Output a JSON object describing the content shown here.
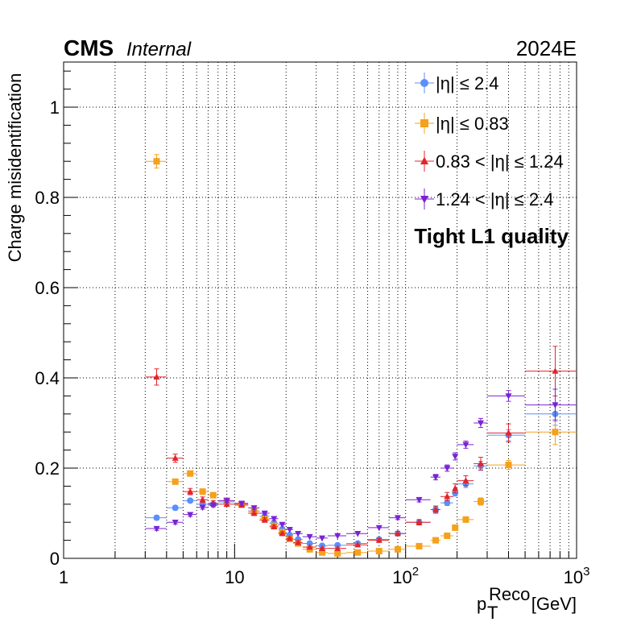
{
  "header": {
    "experiment": "CMS",
    "status": "Internal",
    "era": "2024E",
    "quality_label": "Tight L1 quality"
  },
  "chart_data": {
    "type": "scatter",
    "xlabel": "p_T^Reco [GeV]",
    "xlabel_main": "p",
    "xlabel_sub": "T",
    "xlabel_sup": "Reco",
    "xlabel_unit": "[GeV]",
    "ylabel": "Charge misidentification",
    "xscale": "log",
    "xlim": [
      1,
      1000
    ],
    "ylim": [
      0,
      1.1
    ],
    "grid": true,
    "legend_position": "top-right",
    "x_ticks": [
      {
        "value": 1,
        "label": "1"
      },
      {
        "value": 10,
        "label": "10"
      },
      {
        "value": 100,
        "label": "10",
        "exp": "2"
      },
      {
        "value": 1000,
        "label": "10",
        "exp": "3"
      }
    ],
    "y_ticks": [
      "0",
      "0.2",
      "0.4",
      "0.6",
      "0.8",
      "1"
    ],
    "series": [
      {
        "name": "|η| ≤ 2.4",
        "color": "#5b8ff9",
        "marker": "circle",
        "points": [
          {
            "x": 3.5,
            "xlo": 3,
            "xhi": 4,
            "y": 0.09,
            "err": 0.005
          },
          {
            "x": 4.5,
            "xlo": 4,
            "xhi": 5,
            "y": 0.112,
            "err": 0.005
          },
          {
            "x": 5.5,
            "xlo": 5,
            "xhi": 6,
            "y": 0.128,
            "err": 0.004
          },
          {
            "x": 6.5,
            "xlo": 6,
            "xhi": 7,
            "y": 0.12,
            "err": 0.004
          },
          {
            "x": 7.5,
            "xlo": 7,
            "xhi": 8,
            "y": 0.12,
            "err": 0.004
          },
          {
            "x": 9,
            "xlo": 8,
            "xhi": 10,
            "y": 0.125,
            "err": 0.003
          },
          {
            "x": 11,
            "xlo": 10,
            "xhi": 12,
            "y": 0.12,
            "err": 0.003
          },
          {
            "x": 13,
            "xlo": 12,
            "xhi": 14,
            "y": 0.105,
            "err": 0.003
          },
          {
            "x": 15,
            "xlo": 14,
            "xhi": 16,
            "y": 0.093,
            "err": 0.003
          },
          {
            "x": 17,
            "xlo": 16,
            "xhi": 18,
            "y": 0.078,
            "err": 0.003
          },
          {
            "x": 19,
            "xlo": 18,
            "xhi": 20,
            "y": 0.065,
            "err": 0.003
          },
          {
            "x": 21,
            "xlo": 20,
            "xhi": 22,
            "y": 0.052,
            "err": 0.003
          },
          {
            "x": 23.5,
            "xlo": 22,
            "xhi": 25,
            "y": 0.042,
            "err": 0.003
          },
          {
            "x": 27.5,
            "xlo": 25,
            "xhi": 30,
            "y": 0.033,
            "err": 0.003
          },
          {
            "x": 32.5,
            "xlo": 30,
            "xhi": 35,
            "y": 0.028,
            "err": 0.003
          },
          {
            "x": 40,
            "xlo": 35,
            "xhi": 45,
            "y": 0.029,
            "err": 0.003
          },
          {
            "x": 52.5,
            "xlo": 45,
            "xhi": 60,
            "y": 0.033,
            "err": 0.003
          },
          {
            "x": 70,
            "xlo": 60,
            "xhi": 80,
            "y": 0.042,
            "err": 0.003
          },
          {
            "x": 90,
            "xlo": 80,
            "xhi": 100,
            "y": 0.055,
            "err": 0.004
          },
          {
            "x": 120,
            "xlo": 100,
            "xhi": 140,
            "y": 0.08,
            "err": 0.005
          },
          {
            "x": 150,
            "xlo": 140,
            "xhi": 160,
            "y": 0.108,
            "err": 0.006
          },
          {
            "x": 175,
            "xlo": 160,
            "xhi": 190,
            "y": 0.123,
            "err": 0.006
          },
          {
            "x": 195,
            "xlo": 190,
            "xhi": 200,
            "y": 0.145,
            "err": 0.007
          },
          {
            "x": 225,
            "xlo": 200,
            "xhi": 250,
            "y": 0.165,
            "err": 0.008
          },
          {
            "x": 275,
            "xlo": 250,
            "xhi": 300,
            "y": 0.205,
            "err": 0.01
          },
          {
            "x": 400,
            "xlo": 300,
            "xhi": 500,
            "y": 0.273,
            "err": 0.012
          },
          {
            "x": 750,
            "xlo": 500,
            "xhi": 1000,
            "y": 0.32,
            "err": 0.025
          }
        ]
      },
      {
        "name": "|η| ≤ 0.83",
        "color": "#f5a11c",
        "marker": "square",
        "points": [
          {
            "x": 3.5,
            "xlo": 3,
            "xhi": 4,
            "y": 0.88,
            "err": 0.015
          },
          {
            "x": 4.5,
            "xlo": 4,
            "xhi": 5,
            "y": 0.17,
            "err": 0.005
          },
          {
            "x": 5.5,
            "xlo": 5,
            "xhi": 6,
            "y": 0.188,
            "err": 0.005
          },
          {
            "x": 6.5,
            "xlo": 6,
            "xhi": 7,
            "y": 0.148,
            "err": 0.005
          },
          {
            "x": 7.5,
            "xlo": 7,
            "xhi": 8,
            "y": 0.14,
            "err": 0.005
          },
          {
            "x": 9,
            "xlo": 8,
            "xhi": 10,
            "y": 0.128,
            "err": 0.004
          },
          {
            "x": 11,
            "xlo": 10,
            "xhi": 12,
            "y": 0.12,
            "err": 0.004
          },
          {
            "x": 13,
            "xlo": 12,
            "xhi": 14,
            "y": 0.104,
            "err": 0.004
          },
          {
            "x": 15,
            "xlo": 14,
            "xhi": 16,
            "y": 0.088,
            "err": 0.004
          },
          {
            "x": 17,
            "xlo": 16,
            "xhi": 18,
            "y": 0.072,
            "err": 0.004
          },
          {
            "x": 19,
            "xlo": 18,
            "xhi": 20,
            "y": 0.058,
            "err": 0.004
          },
          {
            "x": 21,
            "xlo": 20,
            "xhi": 22,
            "y": 0.043,
            "err": 0.003
          },
          {
            "x": 23.5,
            "xlo": 22,
            "xhi": 25,
            "y": 0.033,
            "err": 0.003
          },
          {
            "x": 27.5,
            "xlo": 25,
            "xhi": 30,
            "y": 0.02,
            "err": 0.003
          },
          {
            "x": 32.5,
            "xlo": 30,
            "xhi": 35,
            "y": 0.013,
            "err": 0.002
          },
          {
            "x": 40,
            "xlo": 35,
            "xhi": 45,
            "y": 0.011,
            "err": 0.002
          },
          {
            "x": 52.5,
            "xlo": 45,
            "xhi": 60,
            "y": 0.013,
            "err": 0.002
          },
          {
            "x": 70,
            "xlo": 60,
            "xhi": 80,
            "y": 0.016,
            "err": 0.002
          },
          {
            "x": 90,
            "xlo": 80,
            "xhi": 100,
            "y": 0.02,
            "err": 0.003
          },
          {
            "x": 120,
            "xlo": 100,
            "xhi": 140,
            "y": 0.027,
            "err": 0.003
          },
          {
            "x": 150,
            "xlo": 140,
            "xhi": 160,
            "y": 0.04,
            "err": 0.004
          },
          {
            "x": 175,
            "xlo": 160,
            "xhi": 190,
            "y": 0.05,
            "err": 0.004
          },
          {
            "x": 195,
            "xlo": 190,
            "xhi": 200,
            "y": 0.068,
            "err": 0.005
          },
          {
            "x": 225,
            "xlo": 200,
            "xhi": 250,
            "y": 0.086,
            "err": 0.006
          },
          {
            "x": 275,
            "xlo": 250,
            "xhi": 300,
            "y": 0.126,
            "err": 0.008
          },
          {
            "x": 400,
            "xlo": 300,
            "xhi": 500,
            "y": 0.207,
            "err": 0.01
          },
          {
            "x": 750,
            "xlo": 500,
            "xhi": 1000,
            "y": 0.28,
            "err": 0.028
          }
        ]
      },
      {
        "name": "0.83 < |η| ≤ 1.24",
        "color": "#e3242b",
        "marker": "triangle-up",
        "points": [
          {
            "x": 3.5,
            "xlo": 3,
            "xhi": 4,
            "y": 0.402,
            "err": 0.018
          },
          {
            "x": 4.5,
            "xlo": 4,
            "xhi": 5,
            "y": 0.222,
            "err": 0.009
          },
          {
            "x": 5.5,
            "xlo": 5,
            "xhi": 6,
            "y": 0.148,
            "err": 0.007
          },
          {
            "x": 6.5,
            "xlo": 6,
            "xhi": 7,
            "y": 0.13,
            "err": 0.006
          },
          {
            "x": 7.5,
            "xlo": 7,
            "xhi": 8,
            "y": 0.122,
            "err": 0.006
          },
          {
            "x": 9,
            "xlo": 8,
            "xhi": 10,
            "y": 0.12,
            "err": 0.005
          },
          {
            "x": 11,
            "xlo": 10,
            "xhi": 12,
            "y": 0.118,
            "err": 0.005
          },
          {
            "x": 13,
            "xlo": 12,
            "xhi": 14,
            "y": 0.1,
            "err": 0.005
          },
          {
            "x": 15,
            "xlo": 14,
            "xhi": 16,
            "y": 0.085,
            "err": 0.005
          },
          {
            "x": 17,
            "xlo": 16,
            "xhi": 18,
            "y": 0.07,
            "err": 0.004
          },
          {
            "x": 19,
            "xlo": 18,
            "xhi": 20,
            "y": 0.055,
            "err": 0.004
          },
          {
            "x": 21,
            "xlo": 20,
            "xhi": 22,
            "y": 0.044,
            "err": 0.004
          },
          {
            "x": 23.5,
            "xlo": 22,
            "xhi": 25,
            "y": 0.035,
            "err": 0.004
          },
          {
            "x": 27.5,
            "xlo": 25,
            "xhi": 30,
            "y": 0.025,
            "err": 0.003
          },
          {
            "x": 32.5,
            "xlo": 30,
            "xhi": 35,
            "y": 0.022,
            "err": 0.003
          },
          {
            "x": 40,
            "xlo": 35,
            "xhi": 45,
            "y": 0.022,
            "err": 0.003
          },
          {
            "x": 52.5,
            "xlo": 45,
            "xhi": 60,
            "y": 0.03,
            "err": 0.003
          },
          {
            "x": 70,
            "xlo": 60,
            "xhi": 80,
            "y": 0.04,
            "err": 0.004
          },
          {
            "x": 90,
            "xlo": 80,
            "xhi": 100,
            "y": 0.055,
            "err": 0.005
          },
          {
            "x": 120,
            "xlo": 100,
            "xhi": 140,
            "y": 0.08,
            "err": 0.006
          },
          {
            "x": 150,
            "xlo": 140,
            "xhi": 160,
            "y": 0.108,
            "err": 0.008
          },
          {
            "x": 175,
            "xlo": 160,
            "xhi": 190,
            "y": 0.137,
            "err": 0.009
          },
          {
            "x": 195,
            "xlo": 190,
            "xhi": 200,
            "y": 0.155,
            "err": 0.01
          },
          {
            "x": 225,
            "xlo": 200,
            "xhi": 250,
            "y": 0.172,
            "err": 0.011
          },
          {
            "x": 275,
            "xlo": 250,
            "xhi": 300,
            "y": 0.21,
            "err": 0.014
          },
          {
            "x": 400,
            "xlo": 300,
            "xhi": 500,
            "y": 0.278,
            "err": 0.02
          },
          {
            "x": 750,
            "xlo": 500,
            "xhi": 1000,
            "y": 0.415,
            "err": 0.055
          }
        ]
      },
      {
        "name": "1.24 < |η| ≤ 2.4",
        "color": "#7a22d6",
        "marker": "triangle-down",
        "points": [
          {
            "x": 3.5,
            "xlo": 3,
            "xhi": 4,
            "y": 0.066,
            "err": 0.004
          },
          {
            "x": 4.5,
            "xlo": 4,
            "xhi": 5,
            "y": 0.08,
            "err": 0.004
          },
          {
            "x": 5.5,
            "xlo": 5,
            "xhi": 6,
            "y": 0.097,
            "err": 0.004
          },
          {
            "x": 6.5,
            "xlo": 6,
            "xhi": 7,
            "y": 0.113,
            "err": 0.004
          },
          {
            "x": 7.5,
            "xlo": 7,
            "xhi": 8,
            "y": 0.118,
            "err": 0.004
          },
          {
            "x": 9,
            "xlo": 8,
            "xhi": 10,
            "y": 0.128,
            "err": 0.004
          },
          {
            "x": 11,
            "xlo": 10,
            "xhi": 12,
            "y": 0.122,
            "err": 0.004
          },
          {
            "x": 13,
            "xlo": 12,
            "xhi": 14,
            "y": 0.112,
            "err": 0.004
          },
          {
            "x": 15,
            "xlo": 14,
            "xhi": 16,
            "y": 0.1,
            "err": 0.004
          },
          {
            "x": 17,
            "xlo": 16,
            "xhi": 18,
            "y": 0.088,
            "err": 0.004
          },
          {
            "x": 19,
            "xlo": 18,
            "xhi": 20,
            "y": 0.075,
            "err": 0.003
          },
          {
            "x": 21,
            "xlo": 20,
            "xhi": 22,
            "y": 0.064,
            "err": 0.003
          },
          {
            "x": 23.5,
            "xlo": 22,
            "xhi": 25,
            "y": 0.055,
            "err": 0.003
          },
          {
            "x": 27.5,
            "xlo": 25,
            "xhi": 30,
            "y": 0.048,
            "err": 0.003
          },
          {
            "x": 32.5,
            "xlo": 30,
            "xhi": 35,
            "y": 0.045,
            "err": 0.003
          },
          {
            "x": 40,
            "xlo": 35,
            "xhi": 45,
            "y": 0.05,
            "err": 0.003
          },
          {
            "x": 52.5,
            "xlo": 45,
            "xhi": 60,
            "y": 0.055,
            "err": 0.003
          },
          {
            "x": 70,
            "xlo": 60,
            "xhi": 80,
            "y": 0.068,
            "err": 0.003
          },
          {
            "x": 90,
            "xlo": 80,
            "xhi": 100,
            "y": 0.09,
            "err": 0.004
          },
          {
            "x": 120,
            "xlo": 100,
            "xhi": 140,
            "y": 0.13,
            "err": 0.005
          },
          {
            "x": 150,
            "xlo": 140,
            "xhi": 160,
            "y": 0.18,
            "err": 0.006
          },
          {
            "x": 175,
            "xlo": 160,
            "xhi": 190,
            "y": 0.2,
            "err": 0.007
          },
          {
            "x": 195,
            "xlo": 190,
            "xhi": 200,
            "y": 0.226,
            "err": 0.008
          },
          {
            "x": 225,
            "xlo": 200,
            "xhi": 250,
            "y": 0.252,
            "err": 0.008
          },
          {
            "x": 275,
            "xlo": 250,
            "xhi": 300,
            "y": 0.3,
            "err": 0.01
          },
          {
            "x": 400,
            "xlo": 300,
            "xhi": 500,
            "y": 0.36,
            "err": 0.012
          },
          {
            "x": 750,
            "xlo": 500,
            "xhi": 1000,
            "y": 0.34,
            "err": 0.035
          }
        ]
      }
    ]
  }
}
